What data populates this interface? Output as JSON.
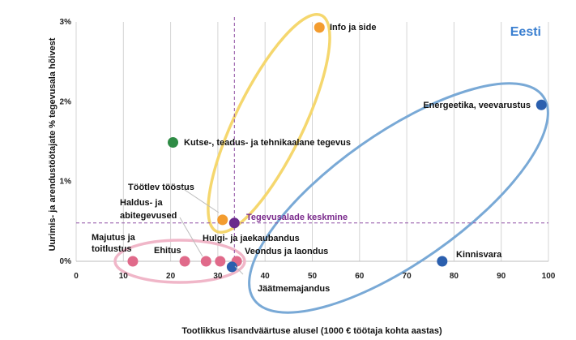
{
  "chart_data": {
    "type": "scatter",
    "region_label": "Eesti",
    "xlabel": "Tootlikkus lisandväärtuse alusel (1000 € töötaja kohta aastas)",
    "ylabel": "Uurimis- ja arendustöötajate % tegevusala hõivest",
    "xlim": [
      0,
      100
    ],
    "ylim": [
      0,
      3
    ],
    "x_ticks": [
      "0",
      "10",
      "20",
      "30",
      "40",
      "50",
      "60",
      "70",
      "80",
      "90",
      "100"
    ],
    "y_ticks": [
      "0%",
      "1%",
      "2%",
      "3%"
    ],
    "grid": "vertical",
    "average_label": "Tegevusalade keskmine",
    "average": {
      "x": 33.5,
      "y": 0.48
    },
    "colors": {
      "orange": "#f39c2f",
      "blue": "#2b5fae",
      "green": "#2e8b45",
      "pink": "#e06a8a",
      "purple": "#6a2a8c",
      "ellipse_yellow": "#f5d76e",
      "ellipse_blue": "#79a9d6",
      "ellipse_pink": "#f0b6c8"
    },
    "points": [
      {
        "label": "Info ja side",
        "x": 51.5,
        "y": 2.93,
        "color": "orange"
      },
      {
        "label": "Energeetika, veevarustus",
        "x": 98.5,
        "y": 1.96,
        "color": "blue"
      },
      {
        "label": "Kutse-, teadus- ja tehnikaalane tegevus",
        "x": 20.5,
        "y": 1.49,
        "color": "green"
      },
      {
        "label": "Töötlev tööstus",
        "x": 31.0,
        "y": 0.52,
        "color": "orange"
      },
      {
        "label": "Kinnisvara",
        "x": 77.5,
        "y": 0.0,
        "color": "blue"
      },
      {
        "label": "Majutus ja toitlustus",
        "x": 12.0,
        "y": 0.0,
        "color": "pink"
      },
      {
        "label": "Ehitus",
        "x": 23.0,
        "y": 0.0,
        "color": "pink"
      },
      {
        "label": "Haldus- ja abitegevused",
        "x": 27.5,
        "y": 0.0,
        "color": "pink"
      },
      {
        "label": "Hulgi- ja jaekaubandus",
        "x": 30.5,
        "y": 0.0,
        "color": "pink"
      },
      {
        "label": "Veondus ja laondus",
        "x": 34.0,
        "y": 0.0,
        "color": "pink"
      },
      {
        "label": "Jäätmemajandus",
        "x": 33.0,
        "y": -0.07,
        "color": "blue"
      }
    ]
  }
}
